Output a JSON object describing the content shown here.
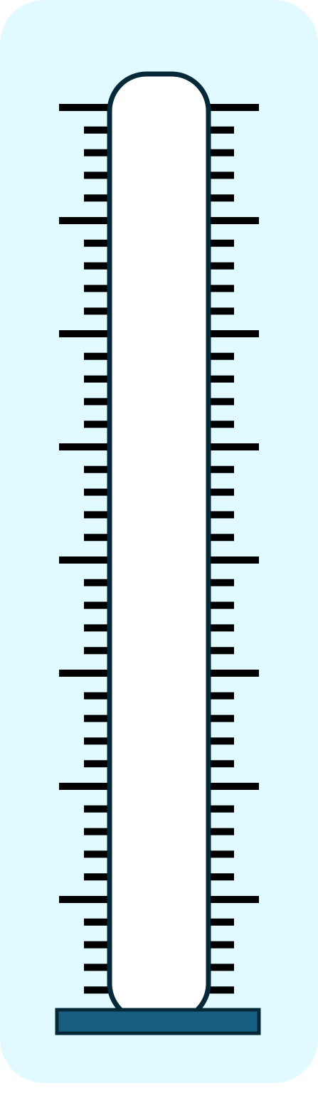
{
  "diagram": {
    "type": "thermometer-gauge",
    "fill_level": 0,
    "colors": {
      "card_background": "#E0FAFF",
      "tube_fill": "#FFFFFF",
      "tube_stroke": "#06293A",
      "tick": "#000000",
      "base_fill": "#165F81",
      "base_stroke": "#06293A"
    },
    "ticks": {
      "major_count": 9,
      "minor_per_interval": 4
    }
  }
}
